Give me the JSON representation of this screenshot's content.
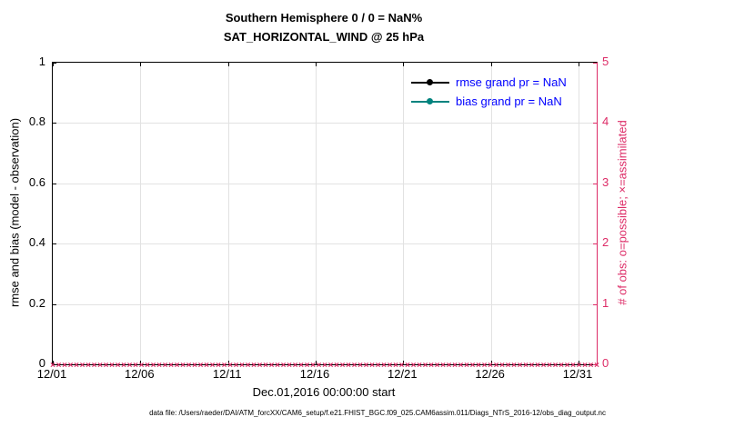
{
  "title": {
    "line1": "Southern Hemisphere 0 / 0 = NaN%",
    "line2": "SAT_HORIZONTAL_WIND @ 25 hPa"
  },
  "axes": {
    "left": {
      "label": "rmse and bias (model - observation)",
      "ticks": [
        "0",
        "0.2",
        "0.4",
        "0.6",
        "0.8",
        "1"
      ],
      "range": [
        0,
        1
      ]
    },
    "right": {
      "label": "# of obs: o=possible; ×=assimilated",
      "ticks": [
        "0",
        "1",
        "2",
        "3",
        "4",
        "5"
      ],
      "range": [
        0,
        5
      ]
    },
    "x": {
      "label": "Dec.01,2016 00:00:00 start",
      "ticks": [
        "12/01",
        "12/06",
        "12/11",
        "12/16",
        "12/21",
        "12/26",
        "12/31"
      ]
    }
  },
  "legend": [
    {
      "label": "rmse grand pr = NaN",
      "color": "#000000"
    },
    {
      "label": "bias grand pr = NaN",
      "color": "#00837E"
    }
  ],
  "colors": {
    "right_axis": "#DD2C67",
    "legend_text": "#0000FF",
    "grid": "#E2E2E2",
    "axis": "#000000"
  },
  "caption": "data file: /Users/raeder/DAI/ATM_forcXX/CAM6_setup/f.e21.FHIST_BGC.f09_025.CAM6assim.011/Diags_NTrS_2016-12/obs_diag_output.nc",
  "chart_data": {
    "type": "line",
    "title": "Southern Hemisphere 0 / 0 = NaN% / SAT_HORIZONTAL_WIND @ 25 hPa",
    "xlabel": "Dec.01,2016 00:00:00 start",
    "ylabel_left": "rmse and bias (model - observation)",
    "ylabel_right": "# of obs: o=possible; ×=assimilated",
    "x_ticks": [
      "12/01",
      "12/06",
      "12/11",
      "12/16",
      "12/21",
      "12/26",
      "12/31"
    ],
    "ylim_left": [
      0,
      1
    ],
    "ylim_right": [
      0,
      5
    ],
    "grid": true,
    "legend_position": "top-right-inside",
    "series": [
      {
        "name": "rmse grand pr = NaN",
        "axis": "left",
        "values": "NaN (no line plotted)"
      },
      {
        "name": "bias grand pr = NaN",
        "axis": "left",
        "values": "NaN (no line plotted)"
      },
      {
        "name": "# of obs possible (o)",
        "axis": "right",
        "constant_value": 0,
        "x_span": [
          "12/01",
          "12/31"
        ]
      },
      {
        "name": "# of obs assimilated (×)",
        "axis": "right",
        "constant_value": 0,
        "x_span": [
          "12/01",
          "12/31"
        ]
      }
    ]
  }
}
